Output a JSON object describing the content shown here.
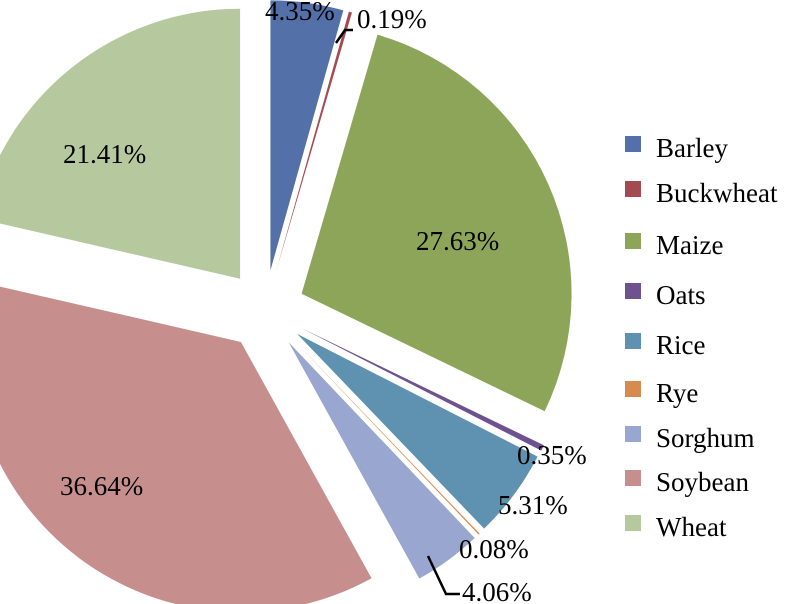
{
  "chart_data": {
    "type": "pie",
    "exploded": true,
    "legend_position": "right",
    "slices": [
      {
        "name": "Barley",
        "value": 4.35,
        "label": "4.35%",
        "color": "#5470A8"
      },
      {
        "name": "Buckwheat",
        "value": 0.19,
        "label": "0.19%",
        "color": "#A44A52"
      },
      {
        "name": "Maize",
        "value": 27.63,
        "label": "27.63%",
        "color": "#8DA558"
      },
      {
        "name": "Oats",
        "value": 0.35,
        "label": "0.35%",
        "color": "#6E5290"
      },
      {
        "name": "Rice",
        "value": 5.31,
        "label": "5.31%",
        "color": "#5E92B0"
      },
      {
        "name": "Rye",
        "value": 0.08,
        "label": "0.08%",
        "color": "#D98A4E"
      },
      {
        "name": "Sorghum",
        "value": 4.06,
        "label": "4.06%",
        "color": "#98A6D0"
      },
      {
        "name": "Soybean",
        "value": 36.64,
        "label": "36.64%",
        "color": "#C78E8E"
      },
      {
        "name": "Wheat",
        "value": 21.41,
        "label": "21.41%",
        "color": "#B5C89E"
      }
    ]
  }
}
